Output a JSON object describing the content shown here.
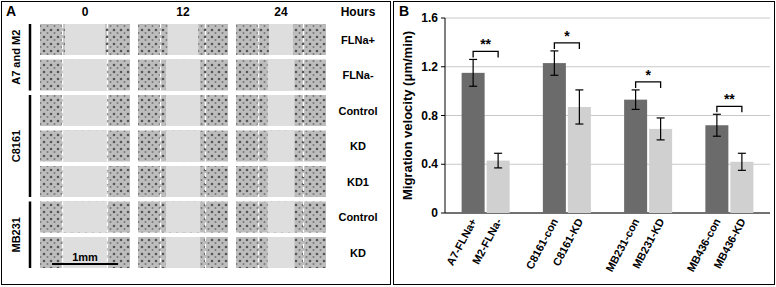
{
  "panels": [
    "A",
    "B"
  ],
  "panel_a": {
    "columns": [
      "0",
      "12",
      "24"
    ],
    "unit": "Hours",
    "groups": [
      {
        "name": "A7 and M2",
        "rows": [
          "FLNa+",
          "FLNa-"
        ]
      },
      {
        "name": "C8161",
        "rows": [
          "Control",
          "KD",
          "KD1"
        ]
      },
      {
        "name": "MB231",
        "rows": [
          "Control",
          "KD"
        ]
      }
    ],
    "scale_bar": "1mm"
  },
  "chart_data": {
    "type": "bar",
    "y_label": "Migration velocity (μm/min)",
    "categories": [
      "A7-FLNa+",
      "M2-FLNa-",
      "C8161-con",
      "C8161-KD",
      "MB231-con",
      "MB231-KD",
      "MB436-con",
      "MB436-KD"
    ],
    "values": [
      1.15,
      0.43,
      1.23,
      0.87,
      0.93,
      0.69,
      0.72,
      0.42
    ],
    "errors": [
      0.11,
      0.06,
      0.1,
      0.14,
      0.08,
      0.09,
      0.09,
      0.07
    ],
    "colors": [
      "#6b6b6b",
      "#d0d0d0",
      "#6b6b6b",
      "#d0d0d0",
      "#6b6b6b",
      "#d0d0d0",
      "#6b6b6b",
      "#d0d0d0"
    ],
    "significance": [
      "**",
      "*",
      "*",
      "**"
    ],
    "ylim": [
      0,
      1.6
    ],
    "yticks": [
      0,
      0.4,
      0.8,
      1.2,
      1.6
    ],
    "grid": true
  }
}
